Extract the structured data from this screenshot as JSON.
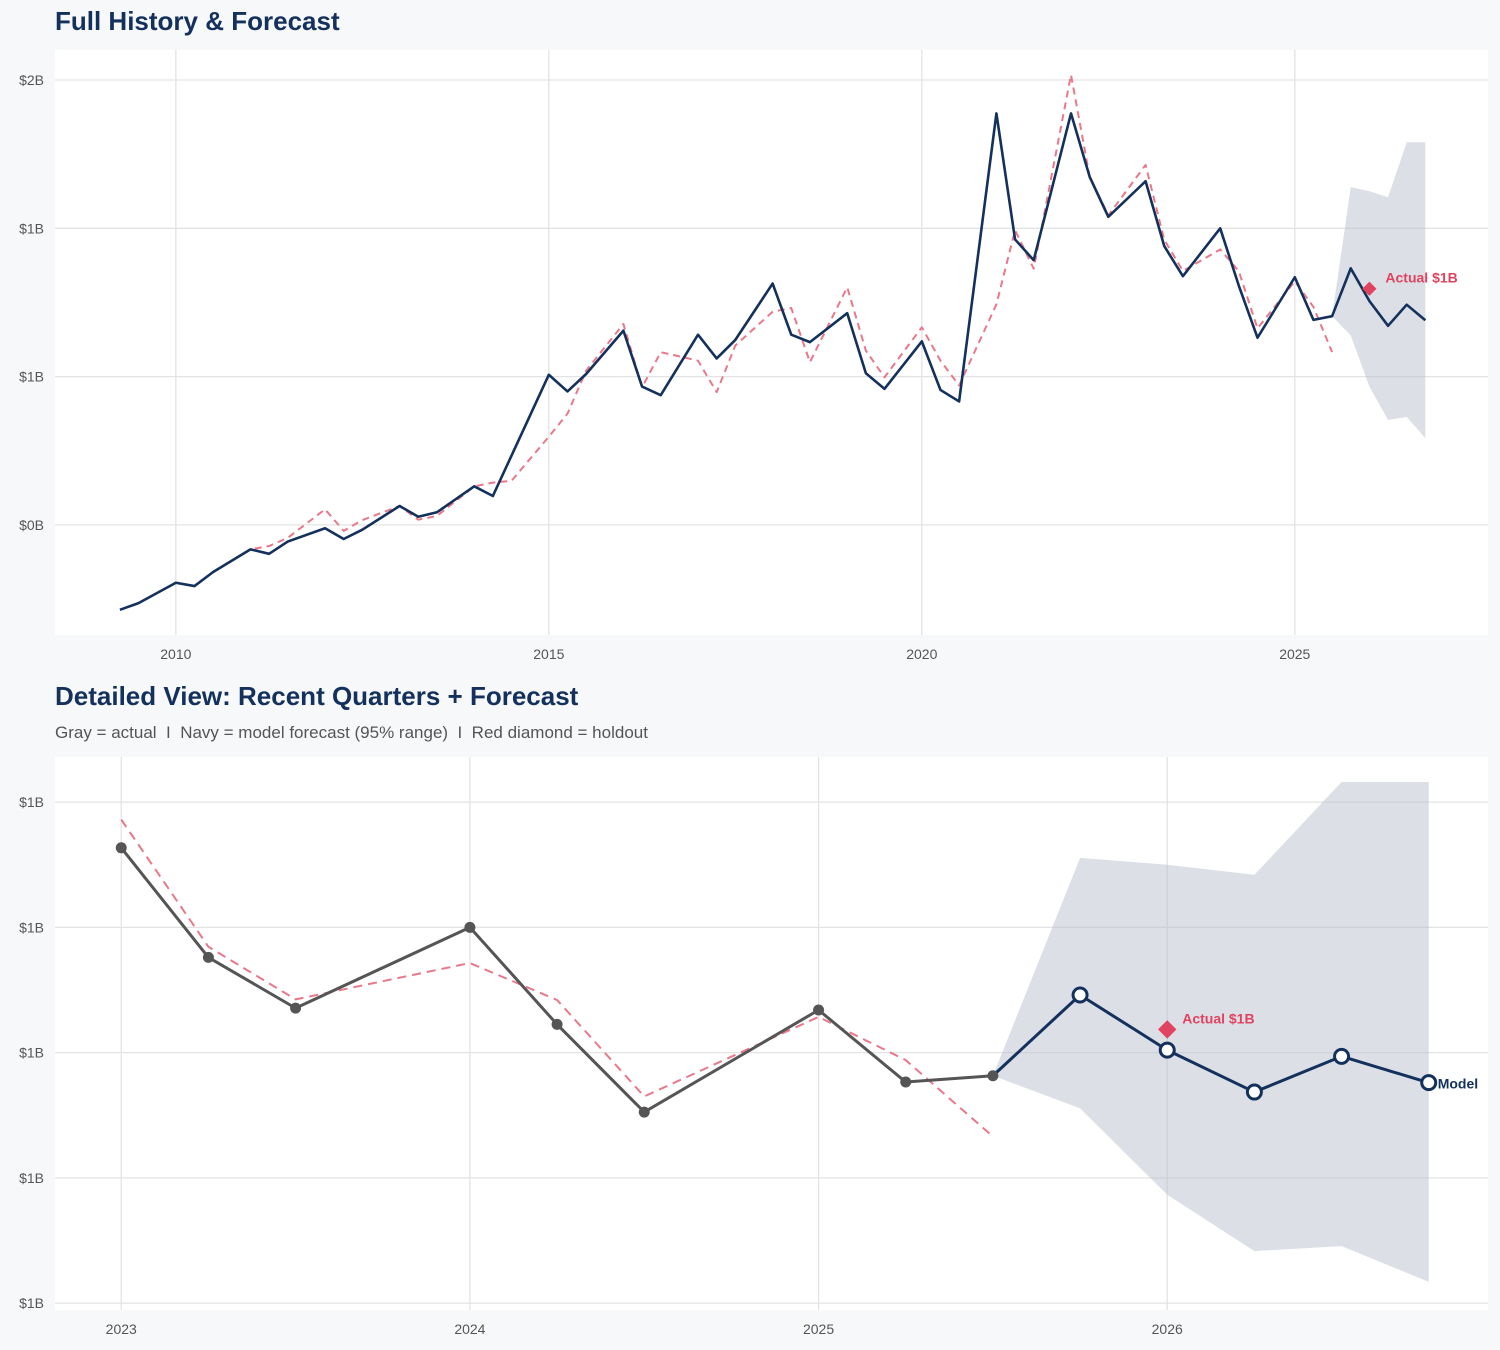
{
  "chart_data": [
    {
      "type": "line",
      "title": "Full History & Forecast",
      "xlim": [
        2008.38,
        2027.59
      ],
      "ylim": [
        0.103,
        1.681
      ],
      "x_ticks": [
        2010,
        2015,
        2020,
        2025
      ],
      "x_tick_labels": [
        "2010",
        "2015",
        "2020",
        "2025"
      ],
      "y_ticks": [
        0.4,
        0.8,
        1.2,
        1.6
      ],
      "y_tick_labels": [
        "$0B",
        "$1B",
        "$1B",
        "$2B"
      ],
      "grid": true,
      "colors": {
        "history": "#13315c",
        "fitted": "#e8788a",
        "band": "#dce0e6",
        "holdout": "#e0435f"
      },
      "series": [
        {
          "style": "solid",
          "x": [
            2009.25,
            2009.5,
            2010,
            2010.25,
            2010.5,
            2011,
            2011.25,
            2011.5,
            2012,
            2012.25,
            2012.5,
            2013,
            2013.25,
            2013.5,
            2014,
            2014.25,
            2015,
            2015.25,
            2015.5,
            2016,
            2016.25,
            2016.5,
            2017,
            2017.25,
            2017.5,
            2018,
            2018.25,
            2018.5,
            2019,
            2019.25,
            2019.5,
            2020,
            2020.25,
            2020.5,
            2021,
            2021.25,
            2021.5,
            2022,
            2022.25,
            2022.5,
            2023,
            2023.25,
            2023.5,
            2024,
            2024.25,
            2024.5,
            2025,
            2025.25,
            2025.5,
            2025.75,
            2026,
            2026.25,
            2026.5,
            2026.75
          ],
          "y": [
            0.171,
            0.189,
            0.244,
            0.235,
            0.273,
            0.334,
            0.322,
            0.355,
            0.391,
            0.362,
            0.387,
            0.451,
            0.422,
            0.434,
            0.504,
            0.478,
            0.805,
            0.76,
            0.807,
            0.924,
            0.773,
            0.75,
            0.913,
            0.849,
            0.899,
            1.051,
            0.913,
            0.893,
            0.971,
            0.809,
            0.767,
            0.895,
            0.764,
            0.733,
            1.51,
            1.17,
            1.114,
            1.51,
            1.339,
            1.231,
            1.327,
            1.152,
            1.071,
            1.2,
            1.045,
            0.905,
            1.068,
            0.953,
            0.963,
            1.092,
            1.004,
            0.937,
            0.994,
            0.952
          ]
        },
        {
          "style": "dashed",
          "x": [
            2010.5,
            2011,
            2011.25,
            2011.5,
            2012,
            2012.25,
            2012.5,
            2013,
            2013.25,
            2013.5,
            2014,
            2014.25,
            2014.5,
            2015,
            2015.25,
            2015.5,
            2016,
            2016.25,
            2016.5,
            2017,
            2017.25,
            2017.5,
            2018,
            2018.25,
            2018.5,
            2019,
            2019.25,
            2019.5,
            2020,
            2020.25,
            2020.5,
            2021,
            2021.25,
            2021.5,
            2022,
            2022.25,
            2022.5,
            2023,
            2023.25,
            2023.5,
            2024,
            2024.25,
            2024.5,
            2025,
            2025.25,
            2025.5
          ],
          "y": [
            0.273,
            0.334,
            0.343,
            0.365,
            0.442,
            0.384,
            0.413,
            0.451,
            0.414,
            0.424,
            0.504,
            0.514,
            0.519,
            0.638,
            0.7,
            0.816,
            0.942,
            0.771,
            0.866,
            0.843,
            0.758,
            0.884,
            0.975,
            0.985,
            0.839,
            1.041,
            0.87,
            0.798,
            0.933,
            0.843,
            0.776,
            0.995,
            1.195,
            1.091,
            1.614,
            1.339,
            1.235,
            1.371,
            1.169,
            1.085,
            1.143,
            1.084,
            0.93,
            1.057,
            0.988,
            0.866
          ]
        }
      ],
      "band": {
        "x": [
          2025.5,
          2025.75,
          2026,
          2026.25,
          2026.5,
          2026.75
        ],
        "upper": [
          0.963,
          1.311,
          1.3,
          1.284,
          1.432,
          1.432
        ],
        "lower": [
          0.963,
          0.911,
          0.773,
          0.683,
          0.691,
          0.634
        ]
      },
      "holdout": {
        "x": 2026,
        "y": 1.037,
        "label": "Actual $1B"
      }
    },
    {
      "type": "line",
      "title": "Detailed View: Recent Quarters + Forecast",
      "subtitle": "Gray = actual  I  Navy = model forecast (95% range)  I  Red diamond = holdout",
      "xlim": [
        2022.81,
        2026.92
      ],
      "ylim": [
        0.589,
        1.472
      ],
      "x_ticks": [
        2023,
        2024,
        2025,
        2026
      ],
      "x_tick_labels": [
        "2023",
        "2024",
        "2025",
        "2026"
      ],
      "y_ticks": [
        1.4,
        1.2,
        1.0,
        0.8,
        0.6
      ],
      "y_tick_labels": [
        "$1B",
        "$1B",
        "$1B",
        "$1B",
        "$1B"
      ],
      "grid": true,
      "colors": {
        "actual": "#555555",
        "forecast": "#13315c",
        "fitted": "#e8788a",
        "band": "#dce0e6",
        "holdout": "#e0435f"
      },
      "actual": {
        "x": [
          2023,
          2023.25,
          2023.5,
          2024,
          2024.25,
          2024.5,
          2025,
          2025.25,
          2025.5
        ],
        "y": [
          1.327,
          1.152,
          1.071,
          1.2,
          1.045,
          0.905,
          1.068,
          0.953,
          0.963
        ]
      },
      "fitted": {
        "x": [
          2023,
          2023.25,
          2023.5,
          2024,
          2024.25,
          2024.5,
          2025,
          2025.25,
          2025.5
        ],
        "y": [
          1.372,
          1.169,
          1.085,
          1.143,
          1.084,
          0.93,
          1.057,
          0.988,
          0.866
        ]
      },
      "forecast": {
        "x": [
          2025.75,
          2026,
          2026.25,
          2026.5,
          2026.75
        ],
        "y": [
          1.092,
          1.004,
          0.937,
          0.994,
          0.952
        ],
        "label": "Model"
      },
      "band": {
        "x": [
          2025.5,
          2025.75,
          2026,
          2026.25,
          2026.5,
          2026.75
        ],
        "upper": [
          0.963,
          1.311,
          1.3,
          1.284,
          1.432,
          1.432
        ],
        "lower": [
          0.963,
          0.911,
          0.773,
          0.683,
          0.691,
          0.634
        ]
      },
      "holdout": {
        "x": 2026,
        "y": 1.037,
        "label": "Actual $1B"
      }
    }
  ]
}
